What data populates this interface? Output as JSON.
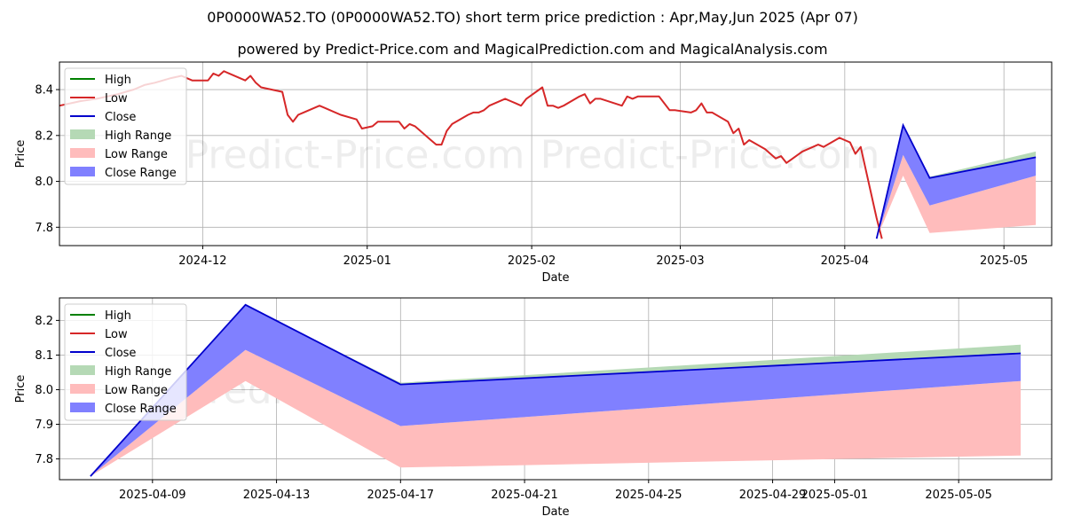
{
  "header": {
    "title": "0P0000WA52.TO (0P0000WA52.TO) short term price prediction : Apr,May,Jun 2025 (Apr 07)",
    "subtitle": "powered by Predict-Price.com and MagicalPrediction.com and MagicalAnalysis.com"
  },
  "watermark": "Predict-Price.com",
  "colors": {
    "high": "#008000",
    "low": "#d62728",
    "close": "#0000cc",
    "high_range": "#b5d9b5",
    "low_range": "#ffbcbc",
    "close_range": "#8080ff",
    "grid": "#b0b0b0"
  },
  "chart_data": [
    {
      "type": "line",
      "xlabel": "Date",
      "ylabel": "Price",
      "ylim": [
        7.72,
        8.52
      ],
      "xlim": [
        "2024-11-04",
        "2025-05-10"
      ],
      "yticks": [
        7.8,
        8.0,
        8.2,
        8.4
      ],
      "xticks": [
        "2024-12",
        "2025-01",
        "2025-02",
        "2025-03",
        "2025-04",
        "2025-05"
      ],
      "grid": true,
      "legend": "upper-left",
      "legend_entries": [
        "High",
        "Low",
        "Close",
        "High Range",
        "Low Range",
        "Close Range"
      ],
      "history": [
        [
          "2024-11-04",
          8.33
        ],
        [
          "2024-11-06",
          8.34
        ],
        [
          "2024-11-08",
          8.35
        ],
        [
          "2024-11-11",
          8.36
        ],
        [
          "2024-11-13",
          8.37
        ],
        [
          "2024-11-15",
          8.38
        ],
        [
          "2024-11-18",
          8.4
        ],
        [
          "2024-11-20",
          8.42
        ],
        [
          "2024-11-22",
          8.43
        ],
        [
          "2024-11-25",
          8.45
        ],
        [
          "2024-11-27",
          8.46
        ],
        [
          "2024-11-29",
          8.44
        ],
        [
          "2024-12-02",
          8.44
        ],
        [
          "2024-12-03",
          8.47
        ],
        [
          "2024-12-04",
          8.46
        ],
        [
          "2024-12-05",
          8.48
        ],
        [
          "2024-12-06",
          8.47
        ],
        [
          "2024-12-09",
          8.44
        ],
        [
          "2024-12-10",
          8.46
        ],
        [
          "2024-12-11",
          8.43
        ],
        [
          "2024-12-12",
          8.41
        ],
        [
          "2024-12-16",
          8.39
        ],
        [
          "2024-12-17",
          8.29
        ],
        [
          "2024-12-18",
          8.26
        ],
        [
          "2024-12-19",
          8.29
        ],
        [
          "2024-12-20",
          8.3
        ],
        [
          "2024-12-23",
          8.33
        ],
        [
          "2024-12-24",
          8.32
        ],
        [
          "2024-12-27",
          8.29
        ],
        [
          "2024-12-30",
          8.27
        ],
        [
          "2024-12-31",
          8.23
        ],
        [
          "2025-01-02",
          8.24
        ],
        [
          "2025-01-03",
          8.26
        ],
        [
          "2025-01-06",
          8.26
        ],
        [
          "2025-01-07",
          8.26
        ],
        [
          "2025-01-08",
          8.23
        ],
        [
          "2025-01-09",
          8.25
        ],
        [
          "2025-01-10",
          8.24
        ],
        [
          "2025-01-13",
          8.18
        ],
        [
          "2025-01-14",
          8.16
        ],
        [
          "2025-01-15",
          8.16
        ],
        [
          "2025-01-16",
          8.22
        ],
        [
          "2025-01-17",
          8.25
        ],
        [
          "2025-01-20",
          8.29
        ],
        [
          "2025-01-21",
          8.3
        ],
        [
          "2025-01-22",
          8.3
        ],
        [
          "2025-01-23",
          8.31
        ],
        [
          "2025-01-24",
          8.33
        ],
        [
          "2025-01-27",
          8.36
        ],
        [
          "2025-01-28",
          8.35
        ],
        [
          "2025-01-29",
          8.34
        ],
        [
          "2025-01-30",
          8.33
        ],
        [
          "2025-01-31",
          8.36
        ],
        [
          "2025-02-03",
          8.41
        ],
        [
          "2025-02-04",
          8.33
        ],
        [
          "2025-02-05",
          8.33
        ],
        [
          "2025-02-06",
          8.32
        ],
        [
          "2025-02-07",
          8.33
        ],
        [
          "2025-02-10",
          8.37
        ],
        [
          "2025-02-11",
          8.38
        ],
        [
          "2025-02-12",
          8.34
        ],
        [
          "2025-02-13",
          8.36
        ],
        [
          "2025-02-14",
          8.36
        ],
        [
          "2025-02-18",
          8.33
        ],
        [
          "2025-02-19",
          8.37
        ],
        [
          "2025-02-20",
          8.36
        ],
        [
          "2025-02-21",
          8.37
        ],
        [
          "2025-02-24",
          8.37
        ],
        [
          "2025-02-25",
          8.37
        ],
        [
          "2025-02-26",
          8.34
        ],
        [
          "2025-02-27",
          8.31
        ],
        [
          "2025-02-28",
          8.31
        ],
        [
          "2025-03-03",
          8.3
        ],
        [
          "2025-03-04",
          8.31
        ],
        [
          "2025-03-05",
          8.34
        ],
        [
          "2025-03-06",
          8.3
        ],
        [
          "2025-03-07",
          8.3
        ],
        [
          "2025-03-10",
          8.26
        ],
        [
          "2025-03-11",
          8.21
        ],
        [
          "2025-03-12",
          8.23
        ],
        [
          "2025-03-13",
          8.16
        ],
        [
          "2025-03-14",
          8.18
        ],
        [
          "2025-03-17",
          8.14
        ],
        [
          "2025-03-18",
          8.12
        ],
        [
          "2025-03-19",
          8.1
        ],
        [
          "2025-03-20",
          8.11
        ],
        [
          "2025-03-21",
          8.08
        ],
        [
          "2025-03-24",
          8.13
        ],
        [
          "2025-03-25",
          8.14
        ],
        [
          "2025-03-26",
          8.15
        ],
        [
          "2025-03-27",
          8.16
        ],
        [
          "2025-03-28",
          8.15
        ],
        [
          "2025-03-31",
          8.19
        ],
        [
          "2025-04-01",
          8.18
        ],
        [
          "2025-04-02",
          8.17
        ],
        [
          "2025-04-03",
          8.12
        ],
        [
          "2025-04-04",
          8.15
        ],
        [
          "2025-04-07",
          7.84
        ],
        [
          "2025-04-08",
          7.75
        ]
      ],
      "forecast_dates": [
        "2025-04-07",
        "2025-04-12",
        "2025-04-17",
        "2025-05-07"
      ],
      "close": [
        7.75,
        8.245,
        8.015,
        8.105
      ],
      "close_range_low": [
        7.75,
        8.115,
        7.895,
        8.025
      ],
      "high_range_high": [
        7.75,
        8.245,
        8.02,
        8.13
      ],
      "low_range_high": [
        7.75,
        8.115,
        7.895,
        8.025
      ],
      "low_range_low": [
        7.75,
        8.025,
        7.775,
        7.81
      ]
    },
    {
      "type": "line",
      "xlabel": "Date",
      "ylabel": "Price",
      "ylim": [
        7.74,
        8.265
      ],
      "xlim": [
        "2025-04-06",
        "2025-05-08"
      ],
      "yticks": [
        7.8,
        7.9,
        8.0,
        8.1,
        8.2
      ],
      "xticks": [
        "2025-04-09",
        "2025-04-13",
        "2025-04-17",
        "2025-04-21",
        "2025-04-25",
        "2025-04-29",
        "2025-05-01",
        "2025-05-05"
      ],
      "grid": true,
      "legend": "upper-left",
      "legend_entries": [
        "High",
        "Low",
        "Close",
        "High Range",
        "Low Range",
        "Close Range"
      ]
    }
  ]
}
